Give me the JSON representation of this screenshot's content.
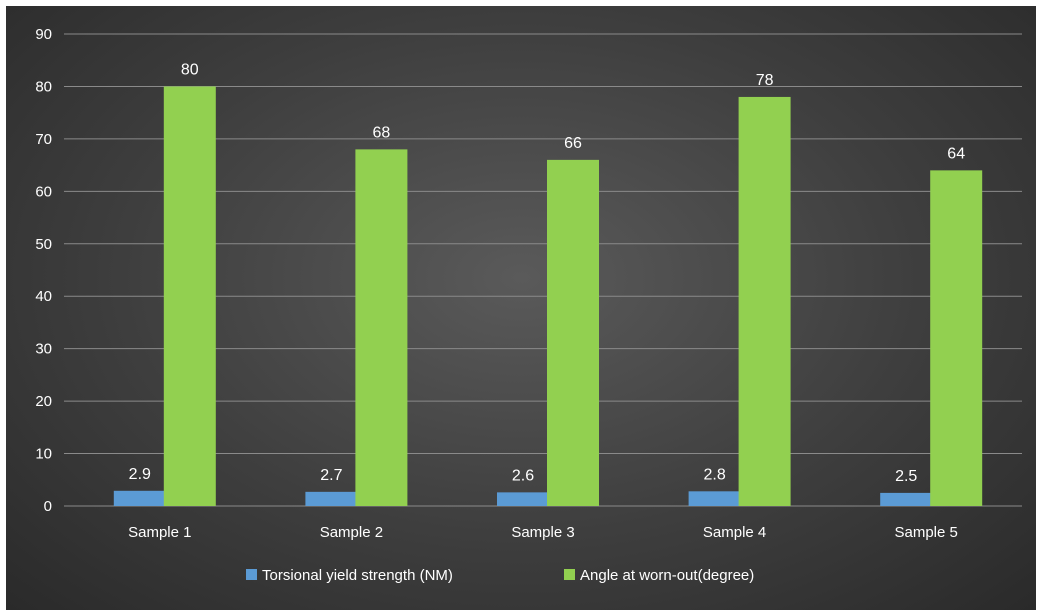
{
  "chart_data": {
    "type": "bar",
    "categories": [
      "Sample 1",
      "Sample 2",
      "Sample 3",
      "Sample 4",
      "Sample 5"
    ],
    "series": [
      {
        "name": "Torsional yield strength (NM)",
        "values": [
          2.9,
          2.7,
          2.6,
          2.8,
          2.5
        ],
        "color": "#5b9bd5"
      },
      {
        "name": "Angle at worn-out(degree)",
        "values": [
          80,
          68,
          66,
          78,
          64
        ],
        "color": "#92d050"
      }
    ],
    "title": "",
    "xlabel": "",
    "ylabel": "",
    "ylim": [
      0,
      90
    ],
    "yticks": [
      0,
      10,
      20,
      30,
      40,
      50,
      60,
      70,
      80,
      90
    ],
    "grid": true,
    "legend_position": "bottom",
    "background": "#404040",
    "text_color": "#ffffff",
    "grid_color": "#8a8a8a"
  }
}
